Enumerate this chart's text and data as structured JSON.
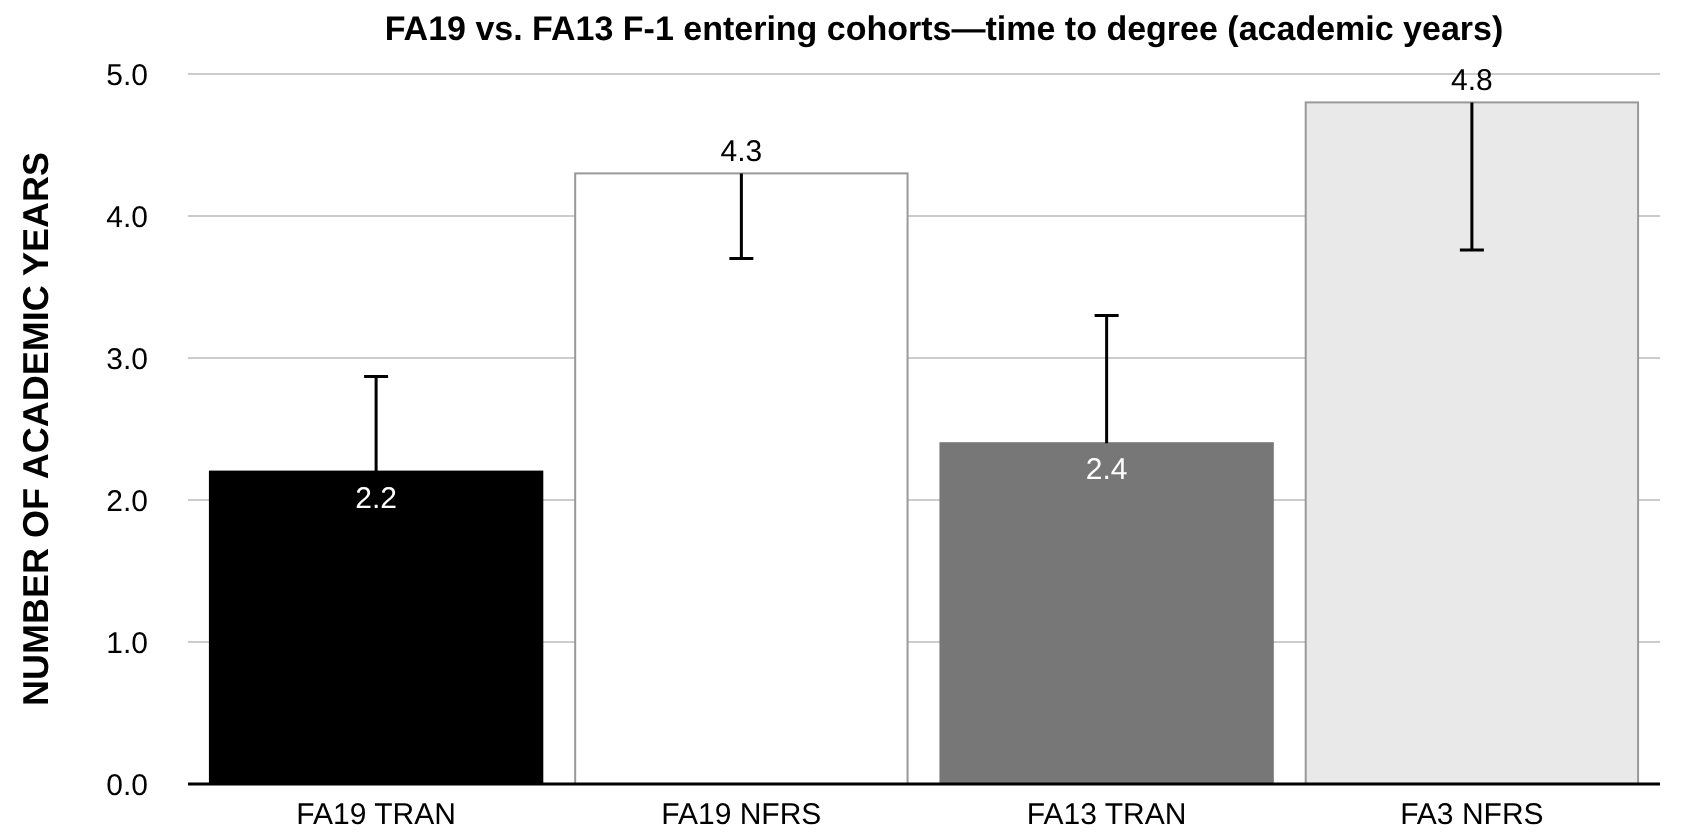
{
  "chart_data": {
    "type": "bar",
    "title": "FA19 vs. FA13 F-1 entering cohorts—time to degree (academic years)",
    "ylabel": "NUMBER OF ACADEMIC YEARS",
    "categories": [
      "FA19 TRAN",
      "FA19 NFRS",
      "FA13 TRAN",
      "FA3 NFRS"
    ],
    "values": [
      2.2,
      4.3,
      2.4,
      4.8
    ],
    "colors": [
      "#000000",
      "#ffffff",
      "#777777",
      "#e9e9e9"
    ],
    "errors": [
      [
        2.2,
        2.87
      ],
      [
        3.7,
        4.3
      ],
      [
        2.4,
        3.3
      ],
      [
        3.76,
        4.8
      ]
    ],
    "data_labels": true,
    "ylim": [
      0,
      5
    ],
    "yticks": [
      {
        "value": 0,
        "label": "0.0"
      },
      {
        "value": 1,
        "label": "1.0"
      },
      {
        "value": 2,
        "label": "2.0"
      },
      {
        "value": 3,
        "label": "3.0"
      },
      {
        "value": 4,
        "label": "4.0"
      },
      {
        "value": 5,
        "label": "5.0"
      }
    ],
    "grid": "y"
  }
}
